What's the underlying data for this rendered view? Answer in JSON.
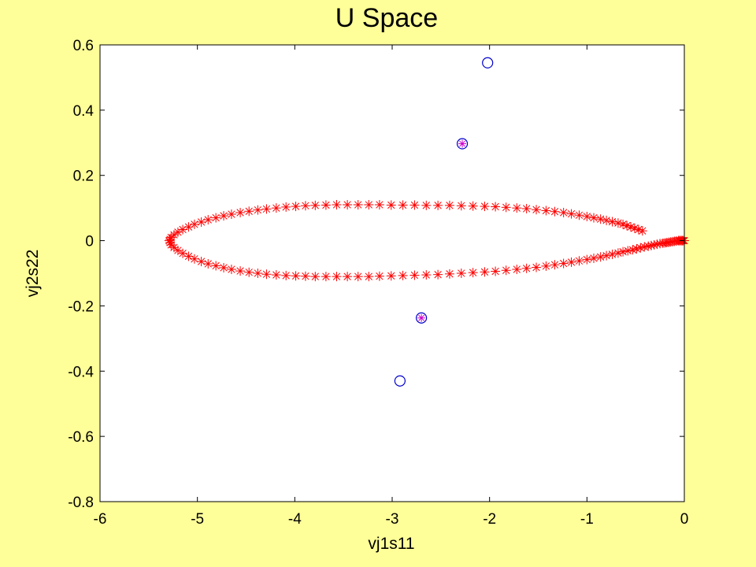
{
  "chart_data": {
    "type": "scatter",
    "title": "U Space",
    "xlabel": "vj1s11",
    "ylabel": "vj2s22",
    "xlim": [
      -6,
      0
    ],
    "ylim": [
      -0.8,
      0.6
    ],
    "xticks": [
      -6,
      -5,
      -4,
      -3,
      -2,
      -1,
      0
    ],
    "xtick_labels": [
      "-6",
      "-5",
      "-4",
      "-3",
      "-2",
      "-1",
      "0"
    ],
    "yticks": [
      -0.8,
      -0.6,
      -0.4,
      -0.2,
      0,
      0.2,
      0.4,
      0.6
    ],
    "ytick_labels": [
      "-0.8",
      "-0.6",
      "-0.4",
      "-0.2",
      "0",
      "0.2",
      "0.4",
      "0.6"
    ],
    "grid": false,
    "colors": {
      "figure_background": "#FFFF99",
      "axes_background": "#FFFFFF",
      "trajectory": "#FF0000",
      "circles": "#0000CC",
      "highlight_star": "#CC00CC"
    },
    "series": [
      {
        "marker": "asterisk",
        "color": "#FF0000",
        "x": [
          -0.43,
          -0.47,
          -0.51,
          -0.55,
          -0.59,
          -0.63,
          -0.68,
          -0.74,
          -0.8,
          -0.86,
          -0.93,
          -1.0,
          -1.08,
          -1.16,
          -1.24,
          -1.33,
          -1.42,
          -1.52,
          -1.62,
          -1.72,
          -1.83,
          -1.94,
          -2.05,
          -2.17,
          -2.29,
          -2.41,
          -2.53,
          -2.65,
          -2.77,
          -2.89,
          -3.01,
          -3.13,
          -3.24,
          -3.35,
          -3.46,
          -3.57,
          -3.68,
          -3.79,
          -3.89,
          -3.99,
          -4.09,
          -4.19,
          -4.29,
          -4.38,
          -4.47,
          -4.56,
          -4.65,
          -4.73,
          -4.81,
          -4.89,
          -4.96,
          -5.03,
          -5.09,
          -5.15,
          -5.2,
          -5.24,
          -5.27,
          -5.28,
          -5.29,
          -5.28,
          -5.27,
          -5.24,
          -5.2,
          -5.15,
          -5.09,
          -5.03,
          -4.96,
          -4.89,
          -4.81,
          -4.73,
          -4.65,
          -4.56,
          -4.47,
          -4.38,
          -4.29,
          -4.19,
          -4.09,
          -3.99,
          -3.89,
          -3.79,
          -3.68,
          -3.57,
          -3.46,
          -3.35,
          -3.24,
          -3.13,
          -3.01,
          -2.89,
          -2.77,
          -2.65,
          -2.53,
          -2.41,
          -2.29,
          -2.17,
          -2.05,
          -1.94,
          -1.83,
          -1.72,
          -1.62,
          -1.52,
          -1.42,
          -1.33,
          -1.24,
          -1.16,
          -1.08,
          -1.0,
          -0.93,
          -0.86,
          -0.8,
          -0.74,
          -0.68,
          -0.63,
          -0.58,
          -0.53,
          -0.49,
          -0.45,
          -0.41,
          -0.37,
          -0.34,
          -0.31,
          -0.28,
          -0.25,
          -0.22,
          -0.2,
          -0.18,
          -0.16,
          -0.14,
          -0.12,
          -0.1,
          -0.08,
          -0.06,
          -0.05,
          -0.04,
          -0.03,
          -0.02,
          -0.01,
          0.0
        ],
        "y": [
          0.03,
          0.034,
          0.038,
          0.042,
          0.046,
          0.05,
          0.054,
          0.058,
          0.062,
          0.066,
          0.07,
          0.074,
          0.078,
          0.082,
          0.086,
          0.089,
          0.092,
          0.095,
          0.098,
          0.1,
          0.102,
          0.104,
          0.105,
          0.106,
          0.107,
          0.108,
          0.108,
          0.108,
          0.109,
          0.109,
          0.109,
          0.11,
          0.11,
          0.11,
          0.11,
          0.11,
          0.109,
          0.108,
          0.107,
          0.105,
          0.103,
          0.1,
          0.097,
          0.094,
          0.09,
          0.086,
          0.081,
          0.076,
          0.07,
          0.064,
          0.057,
          0.05,
          0.042,
          0.034,
          0.026,
          0.018,
          0.01,
          0.004,
          0.0,
          -0.006,
          -0.013,
          -0.021,
          -0.03,
          -0.039,
          -0.048,
          -0.056,
          -0.064,
          -0.071,
          -0.077,
          -0.083,
          -0.088,
          -0.093,
          -0.097,
          -0.1,
          -0.103,
          -0.105,
          -0.107,
          -0.108,
          -0.109,
          -0.11,
          -0.11,
          -0.11,
          -0.11,
          -0.11,
          -0.11,
          -0.109,
          -0.108,
          -0.107,
          -0.106,
          -0.105,
          -0.104,
          -0.102,
          -0.1,
          -0.098,
          -0.096,
          -0.094,
          -0.091,
          -0.088,
          -0.085,
          -0.082,
          -0.078,
          -0.074,
          -0.07,
          -0.066,
          -0.062,
          -0.058,
          -0.054,
          -0.05,
          -0.046,
          -0.042,
          -0.038,
          -0.034,
          -0.031,
          -0.028,
          -0.025,
          -0.022,
          -0.019,
          -0.017,
          -0.015,
          -0.013,
          -0.011,
          -0.009,
          -0.008,
          -0.007,
          -0.006,
          -0.005,
          -0.004,
          -0.003,
          -0.002,
          -0.001,
          0.0,
          0.0,
          0.0,
          0.0,
          0.0,
          0.0,
          0.0
        ]
      },
      {
        "marker": "circle",
        "color": "#0000CC",
        "x": [
          -2.02,
          -2.92
        ],
        "y": [
          0.545,
          -0.43
        ]
      },
      {
        "marker": "circle-asterisk",
        "color": "#CC00CC",
        "ring_color": "#0000CC",
        "x": [
          -2.28,
          -2.7
        ],
        "y": [
          0.297,
          -0.237
        ]
      }
    ]
  }
}
